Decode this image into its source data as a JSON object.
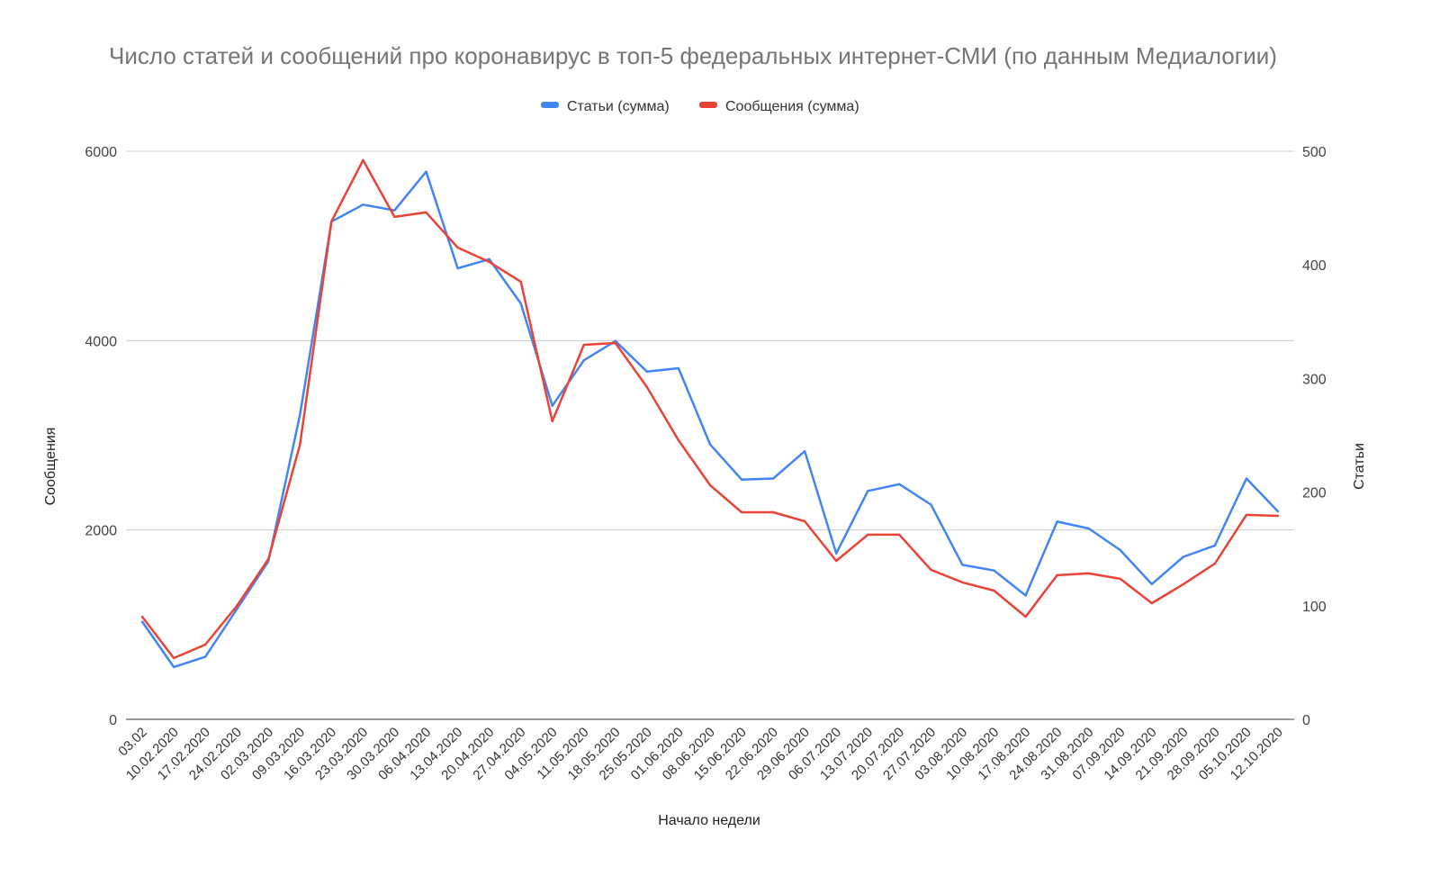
{
  "chart_data": {
    "type": "line",
    "title": "Число статей и сообщений про коронавирус в топ-5 федеральных интернет-СМИ (по данным Медиалогии)",
    "xlabel": "Начало недели",
    "ylabel_left": "Сообщения",
    "ylabel_right": "Статьи",
    "ylim_left": [
      0,
      6000
    ],
    "ylim_right": [
      0,
      500
    ],
    "yticks_left": [
      "0",
      "2000",
      "4000",
      "6000"
    ],
    "yticks_right": [
      "0",
      "100",
      "200",
      "300",
      "400",
      "500"
    ],
    "grid": true,
    "legend_placement": "top",
    "categories": [
      "03.02",
      "10.02.2020",
      "17.02.2020",
      "24.02.2020",
      "02.03.2020",
      "09.03.2020",
      "16.03.2020",
      "23.03.2020",
      "30.03.2020",
      "06.04.2020",
      "13.04.2020",
      "20.04.2020",
      "27.04.2020",
      "04.05.2020",
      "11.05.2020",
      "18.05.2020",
      "25.05.2020",
      "01.06.2020",
      "08.06.2020",
      "15.06.2020",
      "22.06.2020",
      "29.06.2020",
      "06.07.2020",
      "13.07.2020",
      "20.07.2020",
      "27.07.2020",
      "03.08.2020",
      "10.08.2020",
      "17.08.2020",
      "24.08.2020",
      "31.08.2020",
      "07.09.2020",
      "14.09.2020",
      "21.09.2020",
      "28.09.2020",
      "05.10.2020",
      "12.10.2020"
    ],
    "series": [
      {
        "name": "Статьи (сумма)",
        "axis": "right",
        "color": "#4285f4",
        "values": [
          86,
          46,
          55,
          97,
          139,
          268,
          438,
          453,
          448,
          482,
          397,
          405,
          366,
          276,
          316,
          333,
          306,
          309,
          242,
          211,
          212,
          236,
          146,
          201,
          207,
          189,
          136,
          131,
          109,
          174,
          168,
          149,
          119,
          143,
          153,
          212,
          183
        ]
      },
      {
        "name": "Сообщения (сумма)",
        "axis": "left",
        "color": "#ea4335",
        "values": [
          1084,
          647,
          789,
          1198,
          1693,
          2900,
          5259,
          5906,
          5307,
          5354,
          4983,
          4831,
          4622,
          3148,
          3956,
          3975,
          3509,
          2948,
          2473,
          2187,
          2187,
          2092,
          1674,
          1950,
          1950,
          1579,
          1446,
          1360,
          1084,
          1522,
          1541,
          1484,
          1227,
          1427,
          1645,
          2159,
          2149
        ]
      }
    ]
  }
}
